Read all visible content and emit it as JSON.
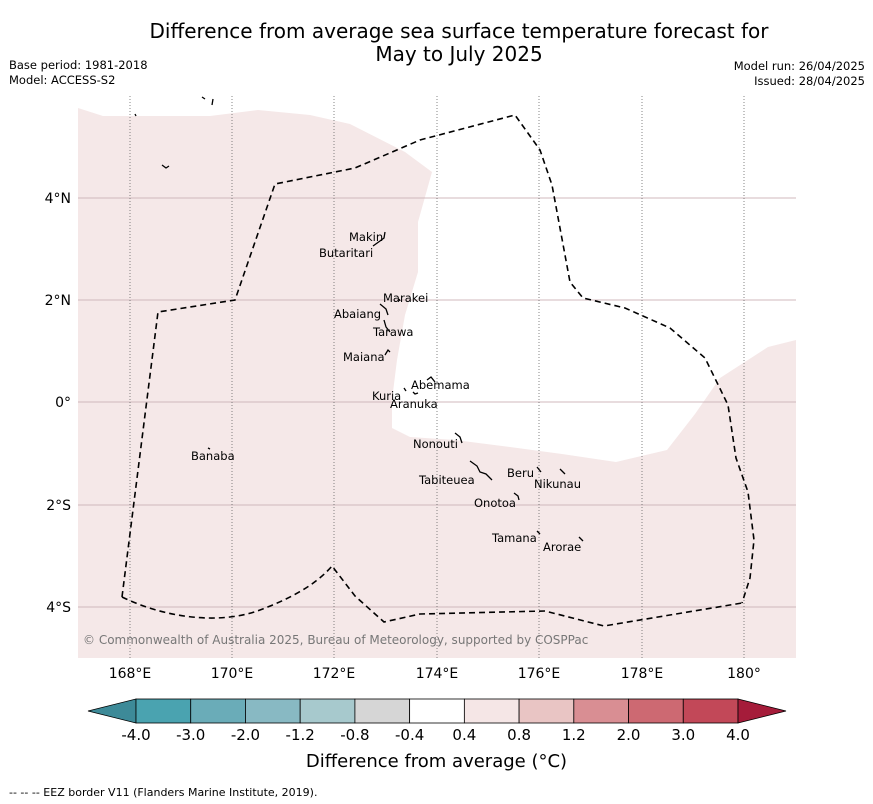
{
  "title_line1": "Difference from average sea surface temperature forecast for",
  "title_line2": "May to July 2025",
  "base_period": "Base period: 1981-2018",
  "model": "Model: ACCESS-S2",
  "model_run": "Model run: 26/04/2025",
  "issued": "Issued: 28/04/2025",
  "copyright": "© Commonwealth of Australia 2025, Bureau of Meteorology, supported by COSPPac",
  "lon_ticks": [
    "168°E",
    "170°E",
    "172°E",
    "174°E",
    "176°E",
    "178°E",
    "180°"
  ],
  "lat_ticks": [
    "4°N",
    "2°N",
    "0°",
    "2°S",
    "4°S"
  ],
  "places": {
    "makin": "Makin",
    "butaritari": "Butaritari",
    "marakei": "Marakei",
    "abaiang": "Abaiang",
    "tarawa": "Tarawa",
    "maiana": "Maiana",
    "abemama": "Abemama",
    "kuria": "Kuria",
    "aranuka": "Aranuka",
    "banaba": "Banaba",
    "nonouti": "Nonouti",
    "tabiteuea": "Tabiteuea",
    "beru": "Beru",
    "nikunau": "Nikunau",
    "onotoa": "Onotoa",
    "tamana": "Tamana",
    "arorae": "Arorae"
  },
  "colorbar": {
    "ticks": [
      "-4.0",
      "-3.0",
      "-2.0",
      "-1.2",
      "-0.8",
      "-0.4",
      "0.4",
      "0.8",
      "1.2",
      "2.0",
      "3.0",
      "4.0"
    ],
    "colors": [
      "#3d8a98",
      "#4aa3b0",
      "#6aacb8",
      "#88b9c3",
      "#a7c9cd",
      "#d6d6d6",
      "#ffffff",
      "#f5e6e6",
      "#e9c5c4",
      "#d98e93",
      "#cd6972",
      "#c24858",
      "#a51c3a"
    ],
    "label": "Difference from average (°C)"
  },
  "map_fill_color": "#f5e8e8",
  "eez_note": "-- -- -- EEZ border V11 (Flanders Marine Institute, 2019)."
}
